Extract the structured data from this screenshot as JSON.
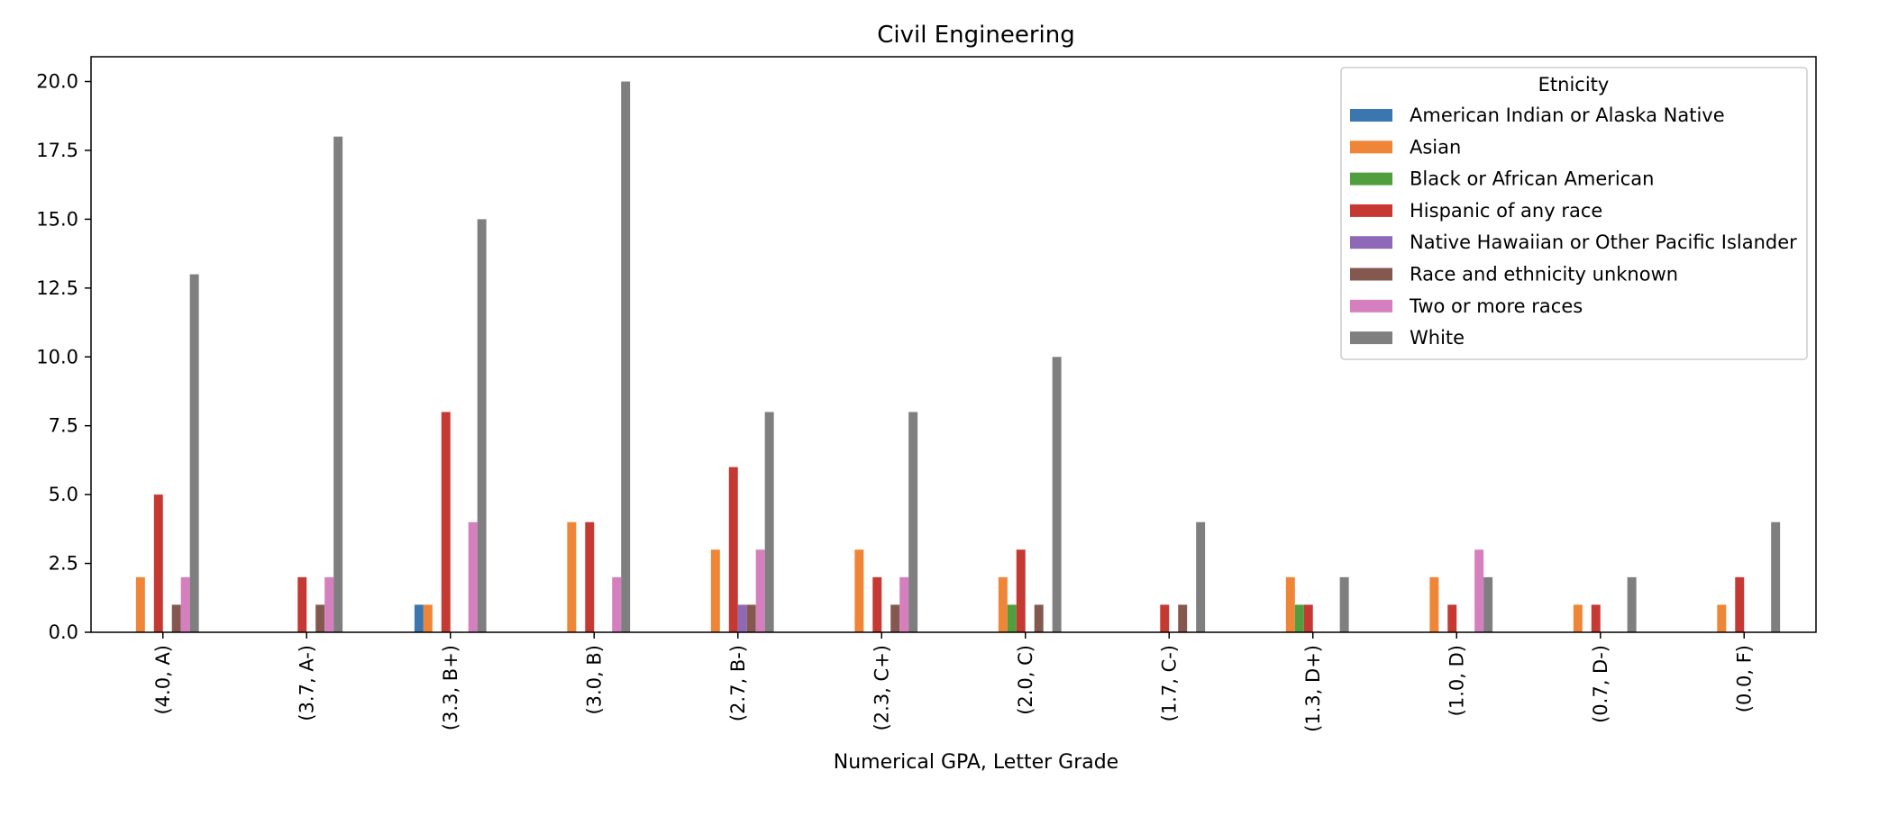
{
  "chart_data": {
    "type": "bar",
    "title": "Civil Engineering",
    "xlabel": "Numerical GPA, Letter Grade",
    "ylabel": "",
    "ylim": [
      0,
      20.9
    ],
    "yticks": [
      "0.0",
      "2.5",
      "5.0",
      "7.5",
      "10.0",
      "12.5",
      "15.0",
      "17.5",
      "20.0"
    ],
    "categories": [
      "(4.0, A)",
      "(3.7, A-)",
      "(3.3, B+)",
      "(3.0, B)",
      "(2.7, B-)",
      "(2.3, C+)",
      "(2.0, C)",
      "(1.7, C-)",
      "(1.3, D+)",
      "(1.0, D)",
      "(0.7, D-)",
      "(0.0, F)"
    ],
    "legend": {
      "title": "Etnicity",
      "placement": "top-right"
    },
    "grid": false,
    "series": [
      {
        "name": "American Indian or Alaska Native",
        "color": "#3a76af",
        "values": [
          0,
          0,
          1,
          0,
          0,
          0,
          0,
          0,
          0,
          0,
          0,
          0
        ]
      },
      {
        "name": "Asian",
        "color": "#ef8536",
        "values": [
          2,
          0,
          1,
          4,
          3,
          3,
          2,
          0,
          2,
          2,
          1,
          1
        ]
      },
      {
        "name": "Black or African American",
        "color": "#519e3e",
        "values": [
          0,
          0,
          0,
          0,
          0,
          0,
          1,
          0,
          1,
          0,
          0,
          0
        ]
      },
      {
        "name": "Hispanic of any race",
        "color": "#c53932",
        "values": [
          5,
          2,
          8,
          4,
          6,
          2,
          3,
          1,
          1,
          1,
          1,
          2
        ]
      },
      {
        "name": "Native Hawaiian or Other Pacific Islander",
        "color": "#8d69b8",
        "values": [
          0,
          0,
          0,
          0,
          1,
          0,
          0,
          0,
          0,
          0,
          0,
          0
        ]
      },
      {
        "name": "Race and ethnicity unknown",
        "color": "#84584e",
        "values": [
          1,
          1,
          0,
          0,
          1,
          1,
          1,
          1,
          0,
          0,
          0,
          0
        ]
      },
      {
        "name": "Two or more races",
        "color": "#d57fbe",
        "values": [
          2,
          2,
          4,
          2,
          3,
          2,
          0,
          0,
          0,
          3,
          0,
          0
        ]
      },
      {
        "name": "White",
        "color": "#7f7f7f",
        "values": [
          13,
          18,
          15,
          20,
          8,
          8,
          10,
          4,
          2,
          2,
          2,
          4
        ]
      }
    ]
  }
}
